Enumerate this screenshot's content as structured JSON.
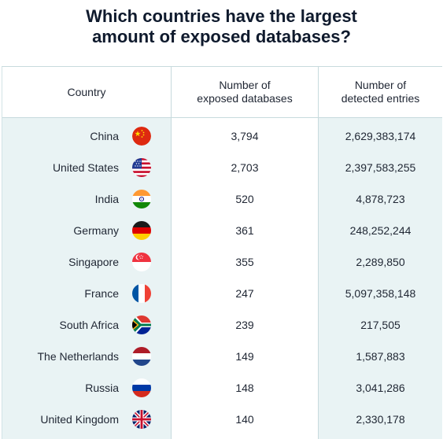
{
  "title": {
    "line1": "Which countries have the largest",
    "line2": "amount of exposed databases?"
  },
  "headers": {
    "country": "Country",
    "db_line1": "Number of",
    "db_line2": "exposed databases",
    "entries_line1": "Number of",
    "entries_line2": "detected entries"
  },
  "colors": {
    "accent_bg": "#e9f3f4",
    "border": "#c7dadd",
    "text": "#1f2633",
    "title": "#0f1a2d"
  },
  "chart_data": {
    "type": "table",
    "title": "Which countries have the largest amount of exposed databases?",
    "columns": [
      "Country",
      "Number of exposed databases",
      "Number of detected entries"
    ],
    "rows": [
      {
        "country": "China",
        "flag_icon": "china-flag-icon",
        "databases": "3,794",
        "entries": "2,629,383,174"
      },
      {
        "country": "United States",
        "flag_icon": "usa-flag-icon",
        "databases": "2,703",
        "entries": "2,397,583,255"
      },
      {
        "country": "India",
        "flag_icon": "india-flag-icon",
        "databases": "520",
        "entries": "4,878,723"
      },
      {
        "country": "Germany",
        "flag_icon": "germany-flag-icon",
        "databases": "361",
        "entries": "248,252,244"
      },
      {
        "country": "Singapore",
        "flag_icon": "singapore-flag-icon",
        "databases": "355",
        "entries": "2,289,850"
      },
      {
        "country": "France",
        "flag_icon": "france-flag-icon",
        "databases": "247",
        "entries": "5,097,358,148"
      },
      {
        "country": "South Africa",
        "flag_icon": "south-africa-flag-icon",
        "databases": "239",
        "entries": "217,505"
      },
      {
        "country": "The Netherlands",
        "flag_icon": "netherlands-flag-icon",
        "databases": "149",
        "entries": "1,587,883"
      },
      {
        "country": "Russia",
        "flag_icon": "russia-flag-icon",
        "databases": "148",
        "entries": "3,041,286"
      },
      {
        "country": "United Kingdom",
        "flag_icon": "uk-flag-icon",
        "databases": "140",
        "entries": "2,330,178"
      }
    ]
  }
}
